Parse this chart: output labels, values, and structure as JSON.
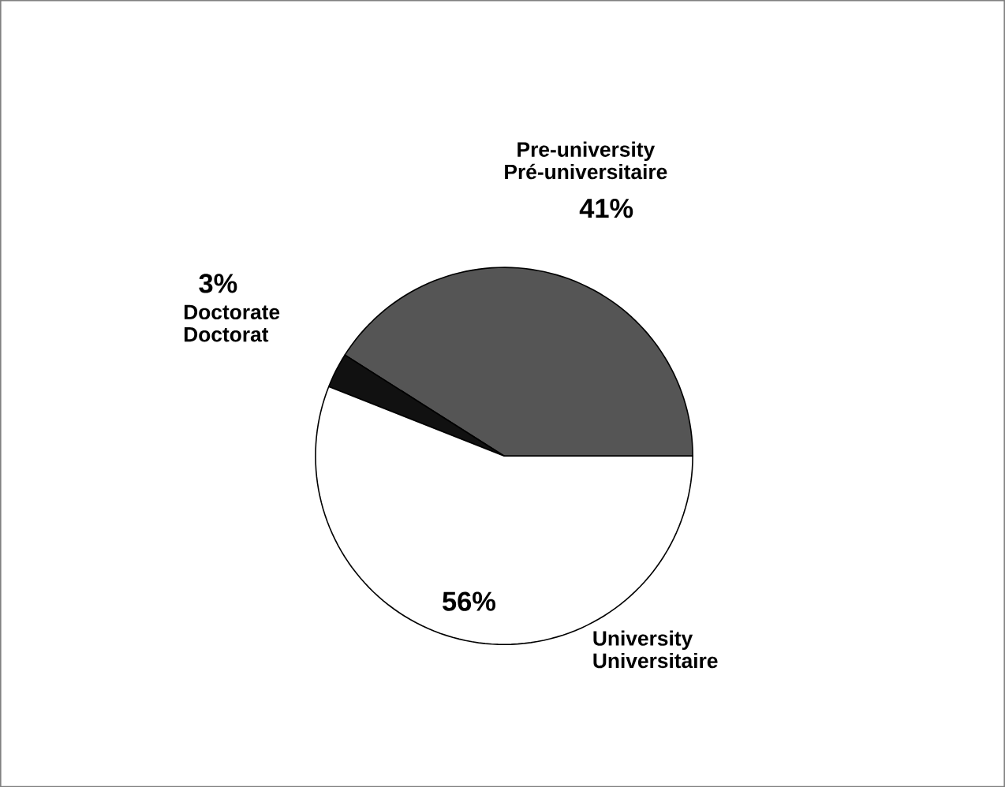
{
  "chart_data": {
    "type": "pie",
    "categories": [
      "Pre-university Pré-universitaire",
      "Doctorate Doctorat",
      "University Universitaire"
    ],
    "values": [
      41,
      3,
      56
    ],
    "colors": [
      "#555555",
      "#111111",
      "#ffffff"
    ],
    "value_labels": [
      "41%",
      "3%",
      "56%"
    ]
  }
}
